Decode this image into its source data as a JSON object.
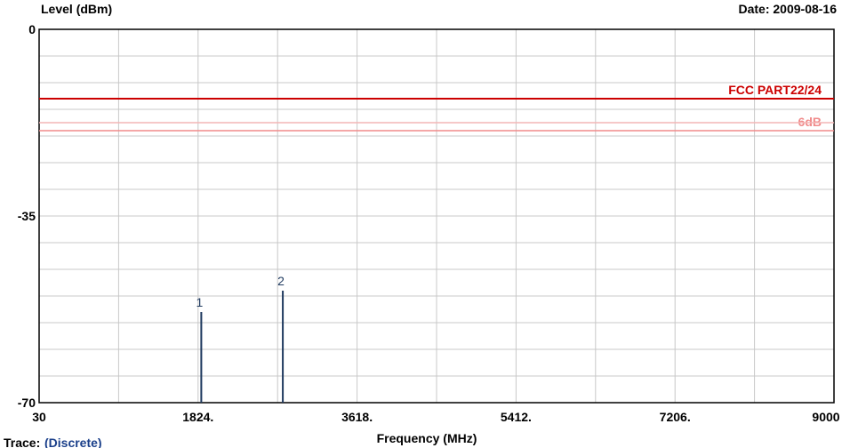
{
  "chart_data": {
    "type": "spectrum",
    "ylabel": "Level (dBm)",
    "xlabel": "Frequency (MHz)",
    "date_label": "Date: 2009-08-16",
    "trace_label": "Trace:",
    "trace_value": "(Discrete)",
    "xlim": [
      30,
      9000
    ],
    "ylim": [
      -70,
      0
    ],
    "x_ticks": [
      "30",
      "1824.",
      "3618.",
      "5412.",
      "7206.",
      "9000"
    ],
    "y_ticks": [
      "0",
      "-35",
      "-70"
    ],
    "grid": true,
    "grid_x_divisions": 10,
    "grid_y_divisions": 14,
    "limit_lines": [
      {
        "label": "FCC PART22/24",
        "value": -13,
        "color": "#cc0000"
      },
      {
        "label": "6dB",
        "value": -19,
        "color": "#f08a8a"
      },
      {
        "label": "",
        "value": -17.5,
        "color": "#f4b6b6"
      }
    ],
    "markers": [
      {
        "label": "1",
        "x": 1860,
        "y": -53
      },
      {
        "label": "2",
        "x": 2780,
        "y": -49
      }
    ],
    "marker_color": "#1f3a5f",
    "grid_color": "#c8c8c8",
    "axis_color": "#000000"
  }
}
